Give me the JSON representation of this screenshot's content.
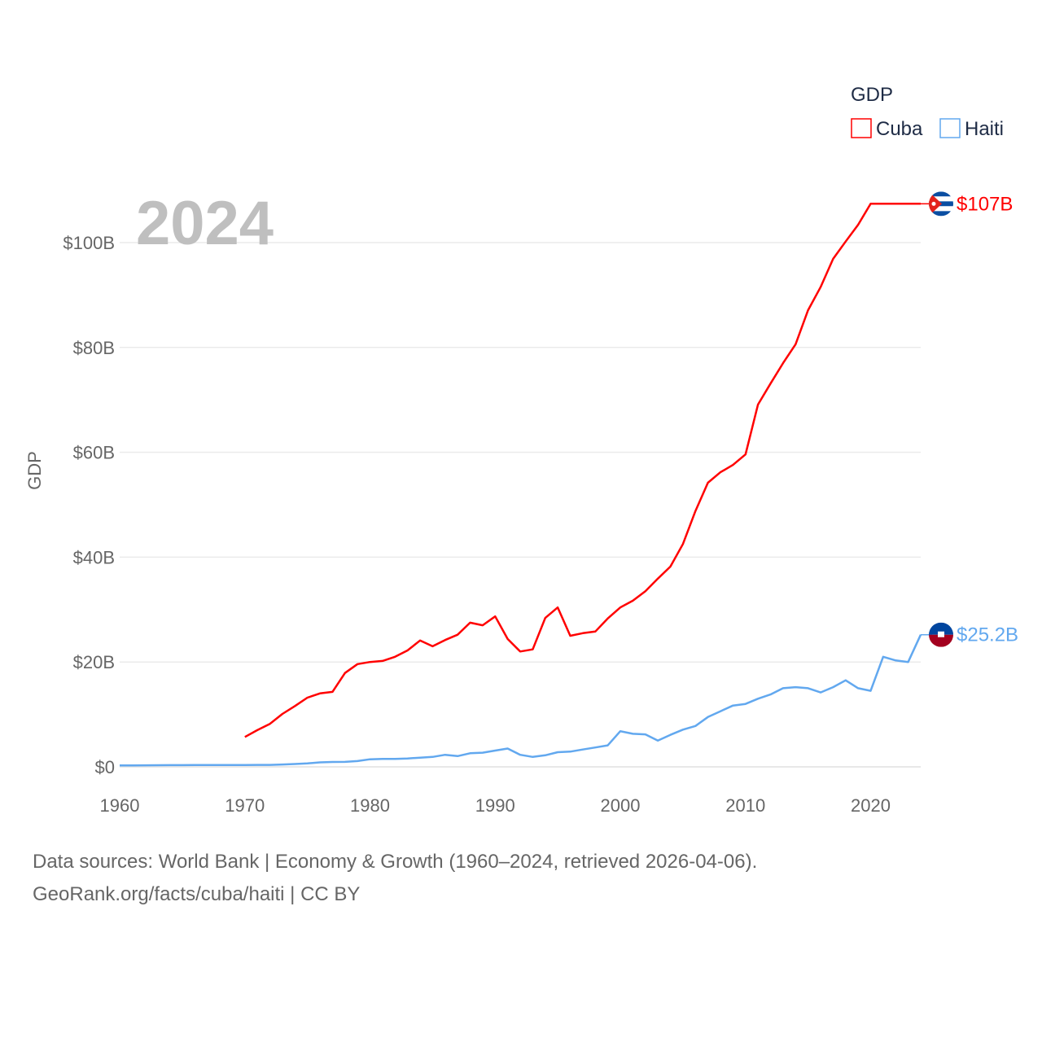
{
  "chart_data": {
    "type": "line",
    "title": "GDP",
    "ylabel": "GDP",
    "xlabel": "",
    "year_label": "2024",
    "xlim": [
      1960,
      2024
    ],
    "ylim": [
      0,
      110
    ],
    "x_ticks": [
      1960,
      1970,
      1980,
      1990,
      2000,
      2010,
      2020
    ],
    "x_tick_labels": [
      "1960",
      "1970",
      "1980",
      "1990",
      "2000",
      "2010",
      "2020"
    ],
    "y_ticks": [
      0,
      20,
      40,
      60,
      80,
      100
    ],
    "y_tick_labels": [
      "$0",
      "$20B",
      "$40B",
      "$60B",
      "$80B",
      "$100B"
    ],
    "grid": true,
    "legend_position": "top-right",
    "legend_title": "GDP",
    "unit": "billion USD",
    "series": [
      {
        "name": "Cuba",
        "color": "#ff0000",
        "end_label": "$107B",
        "start_year": 1970,
        "values": [
          5.7,
          7.0,
          8.2,
          10.1,
          11.6,
          13.2,
          14.0,
          14.3,
          17.9,
          19.6,
          20.0,
          20.2,
          21.0,
          22.2,
          24.1,
          23.0,
          24.2,
          25.2,
          27.5,
          27.0,
          28.7,
          24.4,
          22.0,
          22.4,
          28.4,
          30.4,
          25.0,
          25.5,
          25.8,
          28.3,
          30.4,
          31.7,
          33.5,
          35.9,
          38.2,
          42.5,
          48.8,
          54.2,
          56.2,
          57.6,
          59.6,
          69.1,
          73.1,
          77.0,
          80.6,
          87.1,
          91.5,
          96.9,
          100.2,
          103.4,
          107.4,
          107.4,
          107.4,
          107.4,
          107.4
        ]
      },
      {
        "name": "Haiti",
        "color": "#62a8ef",
        "end_label": "$25.2B",
        "start_year": 1960,
        "values": [
          0.27,
          0.28,
          0.29,
          0.31,
          0.32,
          0.33,
          0.35,
          0.35,
          0.35,
          0.36,
          0.35,
          0.37,
          0.38,
          0.45,
          0.55,
          0.65,
          0.85,
          0.93,
          0.95,
          1.1,
          1.45,
          1.5,
          1.5,
          1.6,
          1.75,
          1.9,
          2.3,
          2.05,
          2.6,
          2.7,
          3.1,
          3.5,
          2.3,
          1.9,
          2.2,
          2.8,
          2.9,
          3.3,
          3.7,
          4.1,
          6.8,
          6.3,
          6.2,
          5.0,
          6.1,
          7.1,
          7.8,
          9.5,
          10.6,
          11.7,
          12.0,
          13.0,
          13.8,
          15.0,
          15.2,
          15.0,
          14.2,
          15.2,
          16.5,
          15.0,
          14.5,
          21.0,
          20.3,
          20.0,
          25.2
        ]
      }
    ]
  },
  "footer": {
    "line1": "Data sources: World Bank | Economy & Growth (1960–2024, retrieved 2026-04-06).",
    "line2": "GeoRank.org/facts/cuba/haiti | CC BY"
  }
}
